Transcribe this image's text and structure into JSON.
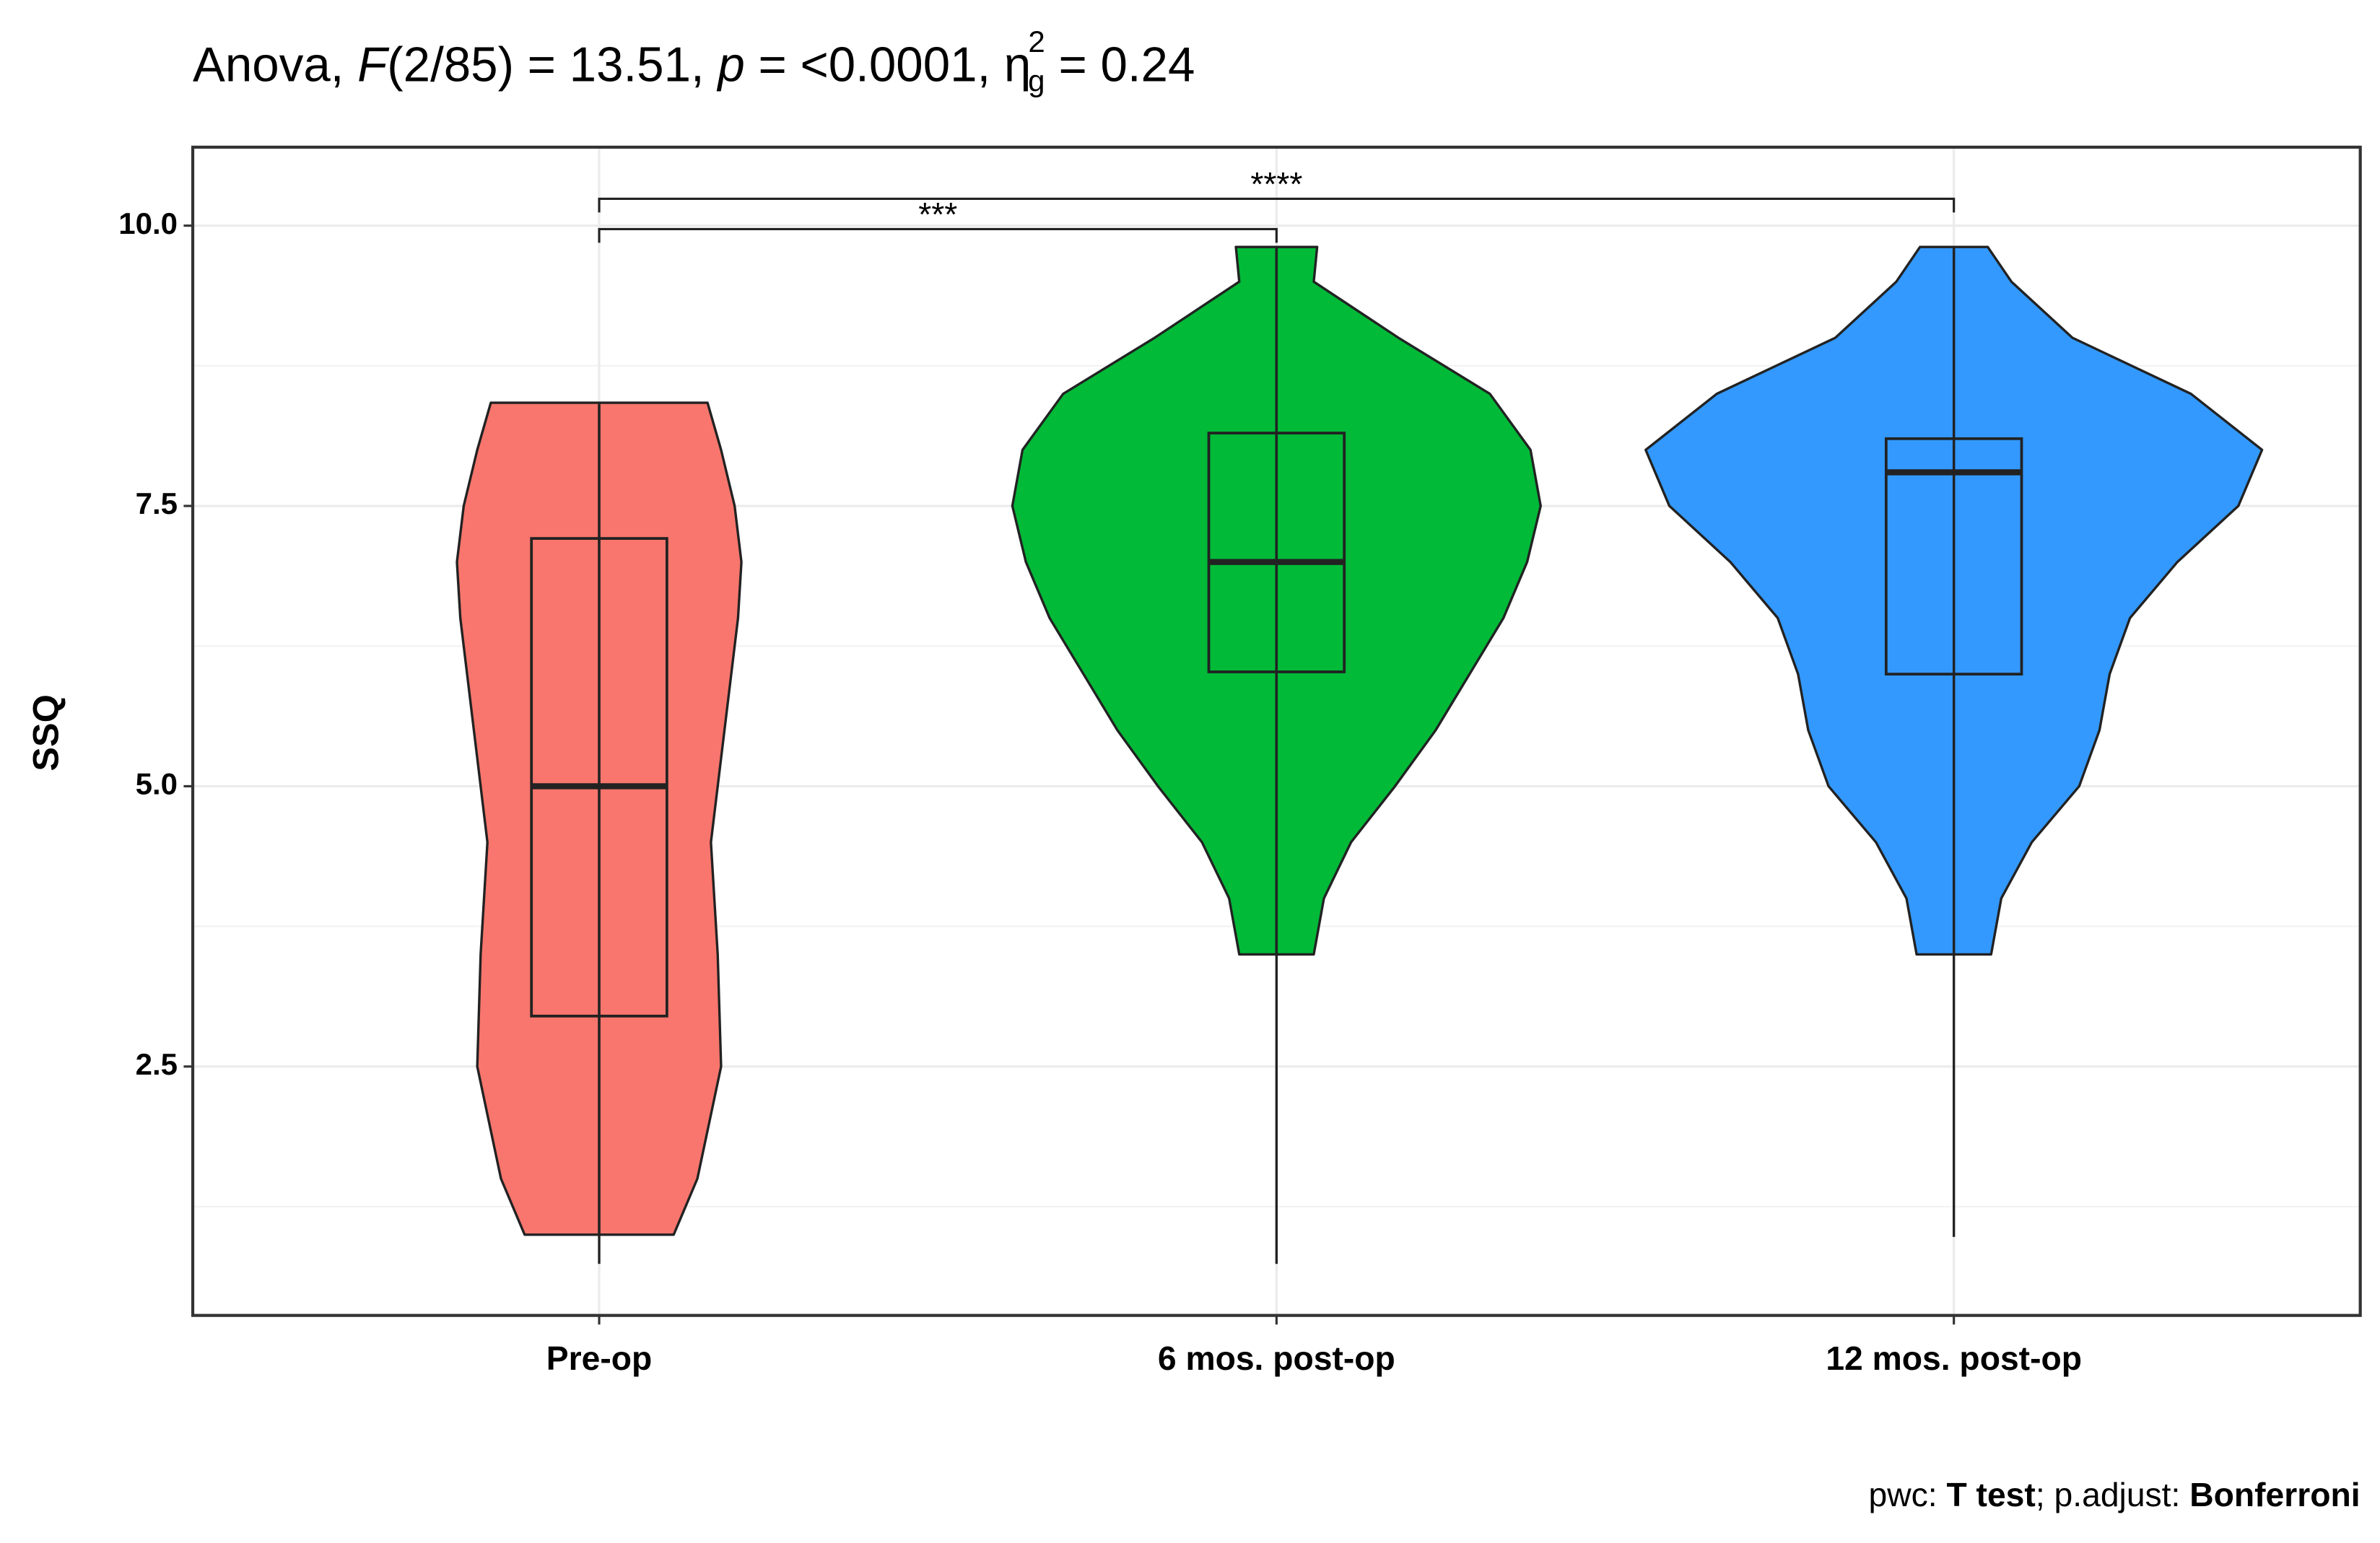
{
  "chart_data": {
    "type": "violin",
    "title_parts": [
      "Anova, ",
      "F",
      "(2/85) = 13.51, ",
      "p",
      " = <0.0001, η",
      "g",
      "2",
      " = 0.24"
    ],
    "y_label": "SSQ",
    "caption_parts": [
      "pwc: ",
      "T test",
      "; p.adjust: ",
      "Bonferroni"
    ],
    "categories": [
      "Pre-op",
      "6 mos. post-op",
      "12 mos. post-op"
    ],
    "ylim": [
      0.28,
      10.7
    ],
    "yticks": [
      2.5,
      {
        "value": 5,
        "label": "5.0"
      },
      7.5,
      {
        "value": 10,
        "label": "10.0"
      }
    ],
    "minor_yticks": [
      1.25,
      3.75,
      6.25,
      8.75
    ],
    "grid": true,
    "series": [
      {
        "name": "Pre-op",
        "color": "#F8766D",
        "box": {
          "whisker_low": 0.74,
          "q1": 2.95,
          "median": 5.0,
          "q3": 7.21,
          "whisker_high": 8.4
        },
        "violin": {
          "y": [
            1.0,
            1.5,
            2.5,
            3.5,
            4.5,
            5.5,
            6.5,
            7.0,
            7.5,
            8.0,
            8.42
          ],
          "density": [
            0.22,
            0.29,
            0.36,
            0.35,
            0.33,
            0.37,
            0.41,
            0.42,
            0.4,
            0.36,
            0.32
          ]
        }
      },
      {
        "name": "6 mos. post-op",
        "color": "#00BA38",
        "box": {
          "whisker_low": 0.74,
          "q1": 6.02,
          "median": 7.0,
          "q3": 8.15,
          "whisker_high": 9.81
        },
        "violin": {
          "y": [
            3.5,
            4.0,
            4.5,
            5.0,
            5.5,
            6.0,
            6.5,
            7.0,
            7.5,
            8.0,
            8.5,
            9.0,
            9.5,
            9.81
          ],
          "density": [
            0.11,
            0.14,
            0.22,
            0.35,
            0.47,
            0.57,
            0.67,
            0.74,
            0.78,
            0.75,
            0.63,
            0.36,
            0.11,
            0.12
          ]
        }
      },
      {
        "name": "12 mos. post-op",
        "color": "#3399FF",
        "box": {
          "whisker_low": 0.98,
          "q1": 6.0,
          "median": 7.8,
          "q3": 8.1,
          "whisker_high": 9.81
        },
        "violin": {
          "y": [
            3.5,
            4.0,
            4.5,
            5.0,
            5.5,
            6.0,
            6.5,
            7.0,
            7.5,
            8.0,
            8.5,
            9.0,
            9.5,
            9.81
          ],
          "density": [
            0.11,
            0.14,
            0.23,
            0.37,
            0.43,
            0.46,
            0.52,
            0.66,
            0.84,
            0.91,
            0.7,
            0.35,
            0.17,
            0.1
          ]
        }
      }
    ],
    "comparisons": [
      {
        "groups": [
          "Pre-op",
          "6 mos. post-op"
        ],
        "label": "***"
      },
      {
        "groups": [
          "Pre-op",
          "12 mos. post-op"
        ],
        "label": "****"
      }
    ]
  }
}
